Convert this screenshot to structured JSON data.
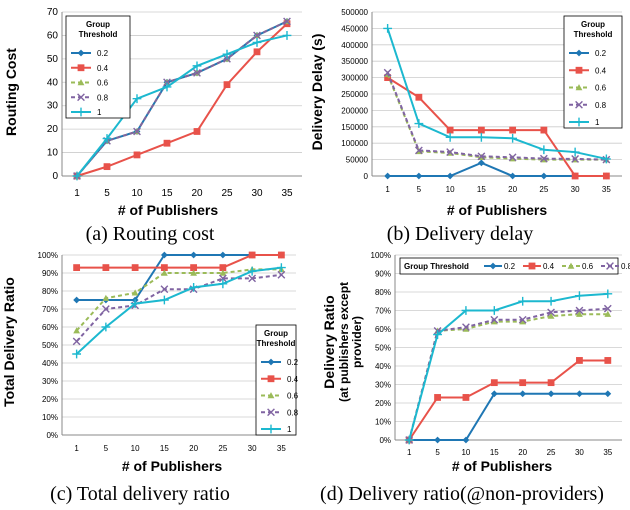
{
  "colors": {
    "0.2": "#1f77b4",
    "0.4": "#e8524a",
    "0.6": "#9bbb59",
    "0.8": "#8064a2",
    "1": "#1cb8cf",
    "grid": "#cccccc"
  },
  "chart_data": [
    {
      "id": "a",
      "type": "line",
      "caption": "(a)  Routing  cost",
      "xlabel": "# of Publishers",
      "ylabel": "Routing Cost",
      "categories": [
        "1",
        "5",
        "10",
        "15",
        "20",
        "25",
        "30",
        "35"
      ],
      "ylim": [
        0,
        70
      ],
      "yticks": [
        0,
        10,
        20,
        30,
        40,
        50,
        60,
        70
      ],
      "legend_title": "Group Threshold",
      "legend": "top-left",
      "grid": true,
      "series": [
        {
          "name": "0.2",
          "values": [
            0,
            15,
            19,
            40,
            44,
            50,
            60,
            66
          ]
        },
        {
          "name": "0.4",
          "values": [
            0,
            4,
            9,
            14,
            19,
            39,
            53,
            65
          ]
        },
        {
          "name": "0.6",
          "values": [
            0,
            15,
            19,
            40,
            44,
            50,
            60,
            66
          ]
        },
        {
          "name": "0.8",
          "values": [
            0,
            15,
            19,
            40,
            44,
            50,
            60,
            66
          ]
        },
        {
          "name": "1",
          "values": [
            0,
            16,
            33,
            38,
            47,
            52,
            57,
            60
          ]
        }
      ]
    },
    {
      "id": "b",
      "type": "line",
      "caption": "(b)  Delivery  delay",
      "xlabel": "# of Publishers",
      "ylabel": "Delivery Delay (s)",
      "categories": [
        "1",
        "5",
        "10",
        "15",
        "20",
        "25",
        "30",
        "35"
      ],
      "ylim": [
        0,
        500000
      ],
      "yticks": [
        0,
        50000,
        100000,
        150000,
        200000,
        250000,
        300000,
        350000,
        400000,
        450000,
        500000
      ],
      "legend_title": "Group Threshold",
      "legend": "top-right",
      "grid": true,
      "series": [
        {
          "name": "0.2",
          "values": [
            0,
            0,
            0,
            40000,
            0,
            0,
            0,
            0
          ]
        },
        {
          "name": "0.4",
          "values": [
            300000,
            240000,
            140000,
            140000,
            140000,
            140000,
            0,
            0
          ]
        },
        {
          "name": "0.6",
          "values": [
            310000,
            75000,
            70000,
            57000,
            53000,
            50000,
            50000,
            50000
          ]
        },
        {
          "name": "0.8",
          "values": [
            315000,
            78000,
            73000,
            60000,
            57000,
            53000,
            52000,
            50000
          ]
        },
        {
          "name": "1",
          "values": [
            450000,
            160000,
            118000,
            118000,
            115000,
            80000,
            73000,
            52000
          ]
        }
      ]
    },
    {
      "id": "c",
      "type": "line",
      "caption": "(c)  Total  delivery  ratio",
      "xlabel": "# of Publishers",
      "ylabel": "Total Delivery Ratio",
      "categories": [
        "1",
        "5",
        "10",
        "15",
        "20",
        "25",
        "30",
        "35"
      ],
      "ylim": [
        0,
        100
      ],
      "yticks": [
        "0%",
        "10%",
        "20%",
        "30%",
        "40%",
        "50%",
        "60%",
        "70%",
        "80%",
        "90%",
        "100%"
      ],
      "legend_title": "Group Threshold",
      "legend": "bottom-right",
      "grid": true,
      "series": [
        {
          "name": "0.2",
          "values": [
            75,
            75,
            75,
            100,
            100,
            100,
            100,
            100
          ]
        },
        {
          "name": "0.4",
          "values": [
            93,
            93,
            93,
            93,
            93,
            93,
            100,
            100
          ]
        },
        {
          "name": "0.6",
          "values": [
            58,
            76,
            79,
            90,
            90,
            90,
            92,
            92
          ]
        },
        {
          "name": "0.8",
          "values": [
            52,
            70,
            72,
            81,
            81,
            87,
            87,
            89
          ]
        },
        {
          "name": "1",
          "values": [
            45,
            60,
            73,
            75,
            82,
            84,
            91,
            93
          ]
        }
      ]
    },
    {
      "id": "d",
      "type": "line",
      "caption": "(d)  Delivery  ratio(@non-providers)",
      "xlabel": "# of Publishers",
      "ylabel_lines": [
        "Delivery Ratio",
        "(at publishers except",
        "provider)"
      ],
      "categories": [
        "1",
        "5",
        "10",
        "15",
        "20",
        "25",
        "30",
        "35"
      ],
      "ylim": [
        0,
        100
      ],
      "yticks": [
        "0%",
        "10%",
        "20%",
        "30%",
        "40%",
        "50%",
        "60%",
        "70%",
        "80%",
        "90%",
        "100%"
      ],
      "legend_title": "Group Threshold",
      "legend": "top",
      "grid": true,
      "series": [
        {
          "name": "0.2",
          "values": [
            0,
            0,
            0,
            25,
            25,
            25,
            25,
            25
          ]
        },
        {
          "name": "0.4",
          "values": [
            0,
            23,
            23,
            31,
            31,
            31,
            43,
            43
          ]
        },
        {
          "name": "0.6",
          "values": [
            0,
            59,
            60,
            64,
            64,
            67,
            68,
            68
          ]
        },
        {
          "name": "0.8",
          "values": [
            0,
            59,
            61,
            65,
            65,
            69,
            70,
            71
          ]
        },
        {
          "name": "1",
          "values": [
            0,
            57,
            70,
            70,
            75,
            75,
            78,
            79
          ]
        }
      ]
    }
  ]
}
